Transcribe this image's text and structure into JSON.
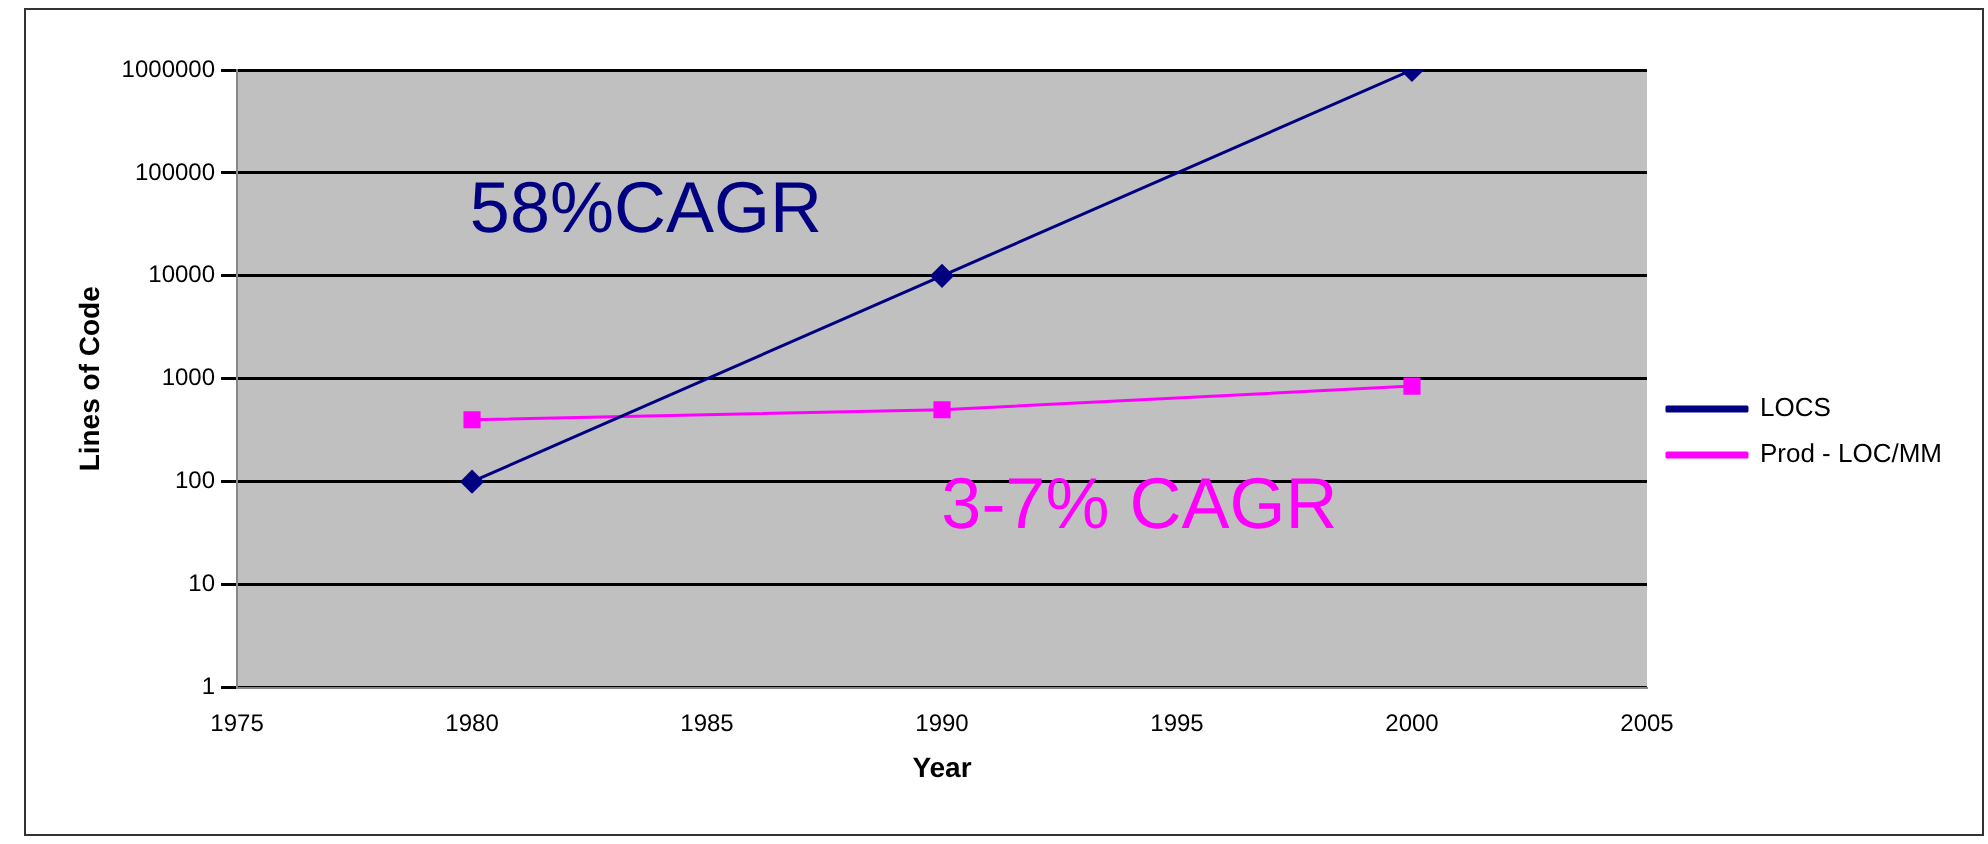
{
  "chart_data": {
    "type": "line",
    "xlabel": "Year",
    "ylabel": "Lines of Code",
    "x": [
      1980,
      1990,
      2000
    ],
    "series": [
      {
        "name": "LOCS",
        "color": "#000080",
        "values": [
          100,
          10000,
          1000000
        ],
        "marker": "diamond"
      },
      {
        "name": "Prod - LOC/MM",
        "color": "#ff00ff",
        "values": [
          400,
          500,
          850
        ],
        "marker": "square"
      }
    ],
    "xlim": [
      1975,
      2005
    ],
    "xticks": [
      1975,
      1980,
      1985,
      1990,
      1995,
      2000,
      2005
    ],
    "ylim": [
      1,
      1000000
    ],
    "yticks": [
      1,
      10,
      100,
      1000,
      10000,
      100000,
      1000000
    ],
    "log": "y",
    "grid": "y",
    "legend": "right",
    "annotations": [
      "58%CAGR",
      "3-7% CAGR"
    ]
  }
}
